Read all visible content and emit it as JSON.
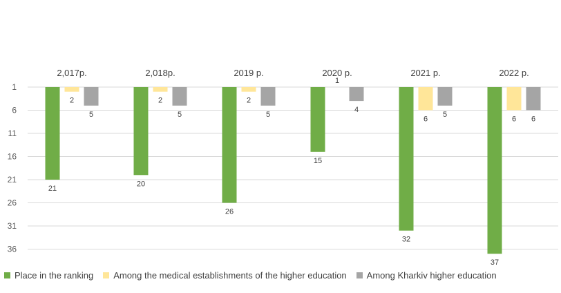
{
  "chart_data": {
    "type": "bar",
    "categories": [
      "2,017р.",
      "2,018р.",
      "2019 р.",
      "2020 р.",
      "2021 р.",
      "2022 р."
    ],
    "yticks": [
      "1",
      "6",
      "11",
      "16",
      "21",
      "26",
      "31",
      "36"
    ],
    "ylim": [
      1,
      38
    ],
    "y_inverted": true,
    "x_axis_position": "top",
    "grid": true,
    "legend_position": "bottom",
    "series": [
      {
        "name": "Place in the ranking",
        "color": "#70ad47",
        "values": [
          21,
          20,
          26,
          15,
          32,
          37
        ],
        "labels": [
          "21",
          "20",
          "26",
          "15",
          "32",
          "37"
        ]
      },
      {
        "name": "Among the medical establishments of the higher education",
        "color": "#ffe699",
        "values": [
          2,
          2,
          2,
          1,
          6,
          6
        ],
        "labels": [
          "2",
          "2",
          "2",
          "1",
          "6",
          "6"
        ]
      },
      {
        "name": "Among Kharkiv higher education",
        "color": "#a5a5a5",
        "values": [
          5,
          5,
          5,
          4,
          5,
          6
        ],
        "labels": [
          "5",
          "5",
          "5",
          "4",
          "5",
          "6"
        ]
      }
    ]
  }
}
